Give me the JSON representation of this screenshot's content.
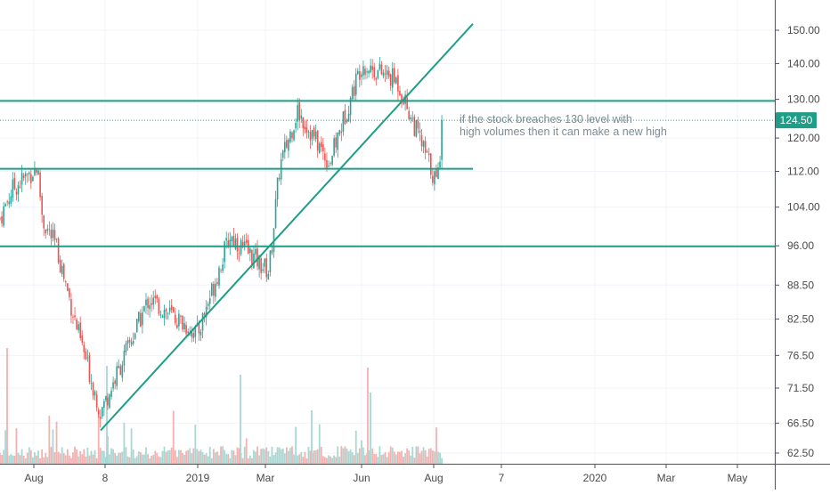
{
  "chart_data": {
    "type": "candlestick",
    "title": "",
    "xlabel": "",
    "ylabel": "",
    "y_scale": "log",
    "ylim": [
      61.5,
      159
    ],
    "y_ticks": [
      "150.00",
      "140.00",
      "130.00",
      "120.00",
      "112.00",
      "104.00",
      "96.00",
      "88.50",
      "82.50",
      "76.50",
      "71.50",
      "66.50",
      "62.50"
    ],
    "x_ticks": [
      "Aug",
      "8",
      "2019",
      "Mar",
      "Jun",
      "Aug",
      "7",
      "2020",
      "Mar",
      "May"
    ],
    "last_price": "124.50",
    "grid": true,
    "colors": {
      "up": "#26a69a",
      "down": "#ef5350",
      "up_volume": "#a7d8d3",
      "down_volume": "#f5b1b0",
      "line": "#1e9e86",
      "axis_text": "#4a4a4a",
      "grid": "#f0f3fa",
      "price_badge": "#1e9e86"
    },
    "price_path_anchors": [
      {
        "date": "Jun 2018",
        "close": 99
      },
      {
        "date": "Jul 2018",
        "close": 108
      },
      {
        "date": "early Aug 2018",
        "close": 113
      },
      {
        "date": "mid Aug 2018",
        "close": 101
      },
      {
        "date": "Sep 2018",
        "close": 96
      },
      {
        "date": "Oct 2018",
        "close": 80
      },
      {
        "date": "Nov 2018",
        "close": 68
      },
      {
        "date": "Dec 2018",
        "close": 86
      },
      {
        "date": "Jan 2019",
        "close": 80
      },
      {
        "date": "Feb 2019",
        "close": 98
      },
      {
        "date": "early Mar 2019",
        "close": 91
      },
      {
        "date": "late Mar 2019",
        "close": 113
      },
      {
        "date": "Apr 2019",
        "close": 127
      },
      {
        "date": "May 2019",
        "close": 114
      },
      {
        "date": "Jun 2019",
        "close": 140
      },
      {
        "date": "Jul 2019",
        "close": 135
      },
      {
        "date": "early Aug 2019",
        "close": 109
      },
      {
        "date": "mid Aug 2019",
        "close": 124.5
      }
    ],
    "drawings": {
      "horizontal_lines": [
        {
          "price": 129.6,
          "span": "full"
        },
        {
          "price": 112.6,
          "span": "to Sep 2019"
        },
        {
          "price": 95.9,
          "span": "full"
        }
      ],
      "trendline": {
        "from": {
          "date": "Nov 2018",
          "price": 65.5
        },
        "to": {
          "date": "Sep 2019",
          "price": 152
        }
      }
    },
    "annotation": {
      "line1": "if the stock breaches 130 level with",
      "line2": "high volumes then it can make a new high"
    }
  }
}
